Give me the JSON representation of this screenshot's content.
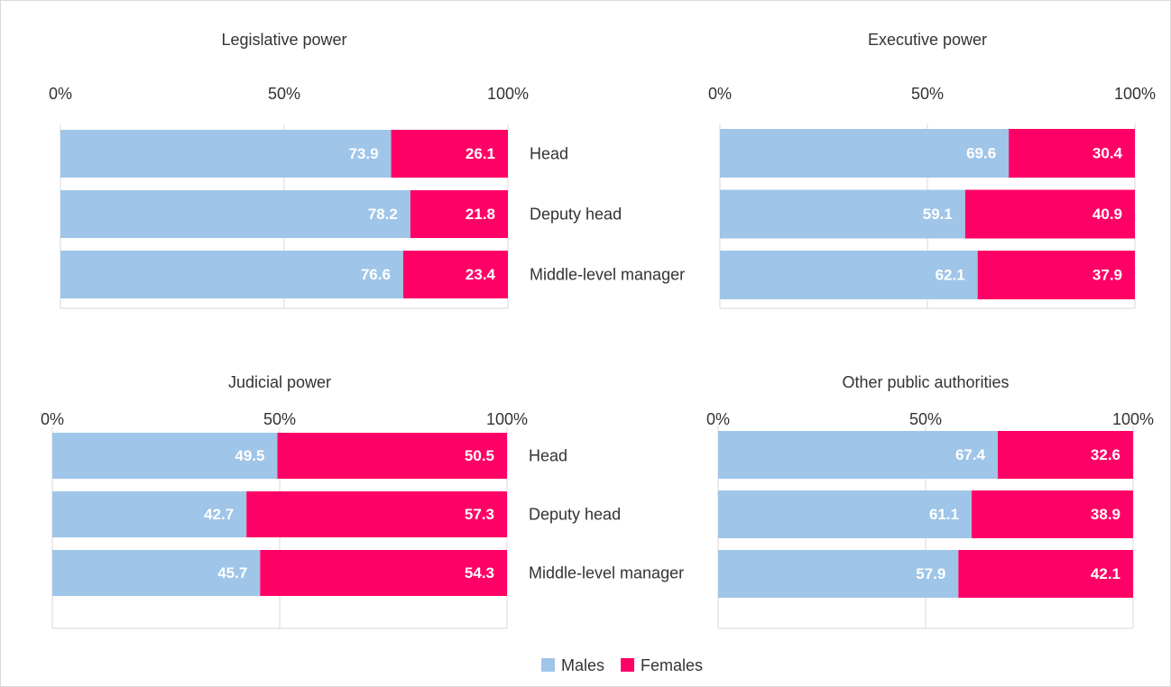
{
  "chart_data": [
    {
      "type": "stacked-barh",
      "title": "Legislative power",
      "categories": [
        "Head",
        "Deputy head",
        "Middle-level manager"
      ],
      "series": [
        {
          "name": "Males",
          "color": "#9fc5e8",
          "values": [
            73.9,
            78.2,
            76.6
          ]
        },
        {
          "name": "Females",
          "color": "#ff0066",
          "values": [
            26.1,
            21.8,
            23.4
          ]
        }
      ],
      "xlim": [
        0,
        100
      ],
      "xticks": [
        {
          "value": 0,
          "label": "0%"
        },
        {
          "value": 50,
          "label": "50%"
        },
        {
          "value": 100,
          "label": "100%"
        }
      ],
      "grid": true,
      "legend": "bottom"
    },
    {
      "type": "stacked-barh",
      "title": "Executive power",
      "series": [
        {
          "name": "Males",
          "color": "#9fc5e8",
          "values": [
            69.6,
            59.1,
            62.1
          ]
        },
        {
          "name": "Females",
          "color": "#ff0066",
          "values": [
            30.4,
            40.9,
            37.9
          ]
        }
      ],
      "xlim": [
        0,
        100
      ],
      "xticks": [
        {
          "value": 0,
          "label": "0%"
        },
        {
          "value": 50,
          "label": "50%"
        },
        {
          "value": 100,
          "label": "100%"
        }
      ],
      "grid": true
    },
    {
      "type": "stacked-barh",
      "title": "Judicial power",
      "categories": [
        "Head",
        "Deputy head",
        "Middle-level manager"
      ],
      "series": [
        {
          "name": "Males",
          "color": "#9fc5e8",
          "values": [
            49.5,
            42.7,
            45.7
          ]
        },
        {
          "name": "Females",
          "color": "#ff0066",
          "values": [
            50.5,
            57.3,
            54.3
          ]
        }
      ],
      "xlim": [
        0,
        100
      ],
      "xticks": [
        {
          "value": 0,
          "label": "0%"
        },
        {
          "value": 50,
          "label": "50%"
        },
        {
          "value": 100,
          "label": "100%"
        }
      ],
      "grid": true
    },
    {
      "type": "stacked-barh",
      "title": "Other public authorities",
      "series": [
        {
          "name": "Males",
          "color": "#9fc5e8",
          "values": [
            67.4,
            61.1,
            57.9
          ]
        },
        {
          "name": "Females",
          "color": "#ff0066",
          "values": [
            32.6,
            38.9,
            42.1
          ]
        }
      ],
      "xlim": [
        0,
        100
      ],
      "xticks": [
        {
          "value": 0,
          "label": "0%"
        },
        {
          "value": 50,
          "label": "50%"
        },
        {
          "value": 100,
          "label": "100%"
        }
      ],
      "grid": true
    }
  ]
}
